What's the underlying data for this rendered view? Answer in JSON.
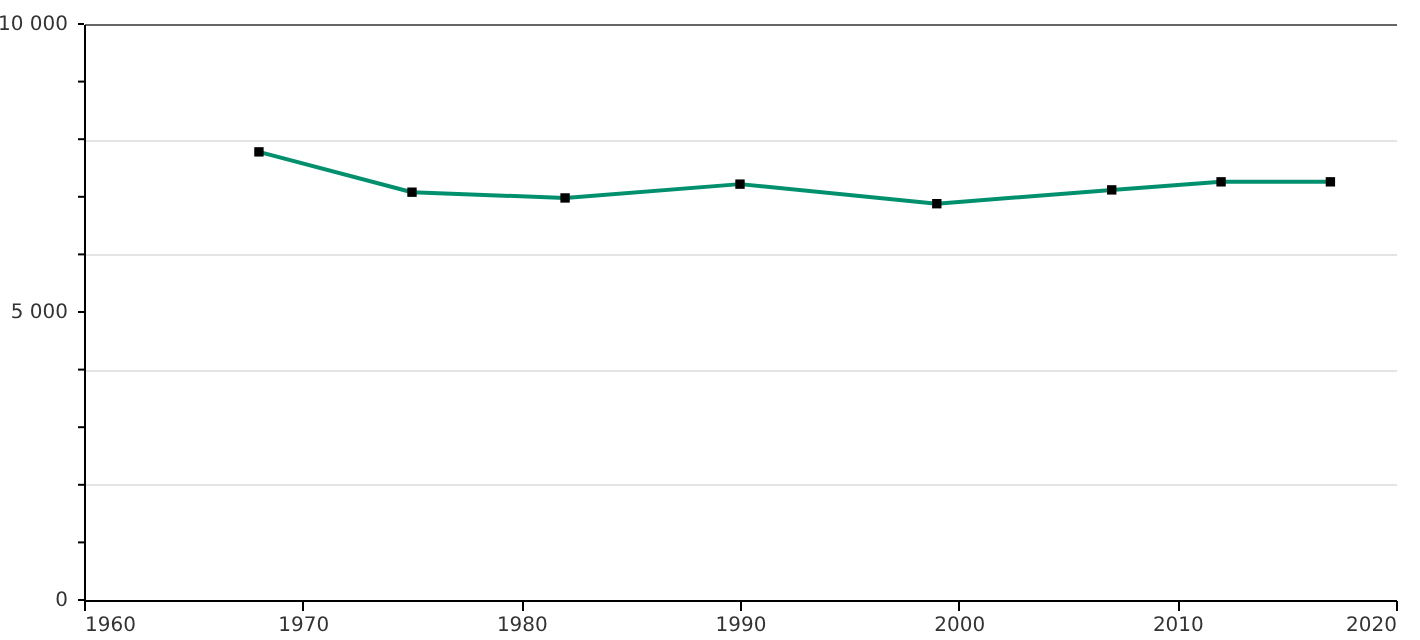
{
  "chart_data": {
    "type": "line",
    "x": [
      1968,
      1975,
      1982,
      1990,
      1999,
      2007,
      2012,
      2017
    ],
    "series": [
      {
        "color": "#00906e",
        "values": [
          7780,
          7080,
          6980,
          7220,
          6880,
          7120,
          7260,
          7260
        ]
      }
    ],
    "xlim": [
      1960,
      2020
    ],
    "xticks": [
      1960,
      1970,
      1980,
      1990,
      2000,
      2010,
      2020
    ],
    "ylim": [
      0,
      10000
    ],
    "yticks": [
      {
        "value": 0,
        "label": "0"
      },
      {
        "value": 1000,
        "label": null
      },
      {
        "value": 2000,
        "label": null
      },
      {
        "value": 3000,
        "label": null
      },
      {
        "value": 4000,
        "label": null
      },
      {
        "value": 5000,
        "label": "5 000"
      },
      {
        "value": 6000,
        "label": null
      },
      {
        "value": 7000,
        "label": null
      },
      {
        "value": 8000,
        "label": null
      },
      {
        "value": 9000,
        "label": null
      },
      {
        "value": 10000,
        "label": "10 000"
      }
    ],
    "grid": "y",
    "marker": "square",
    "line_style": "solid"
  }
}
